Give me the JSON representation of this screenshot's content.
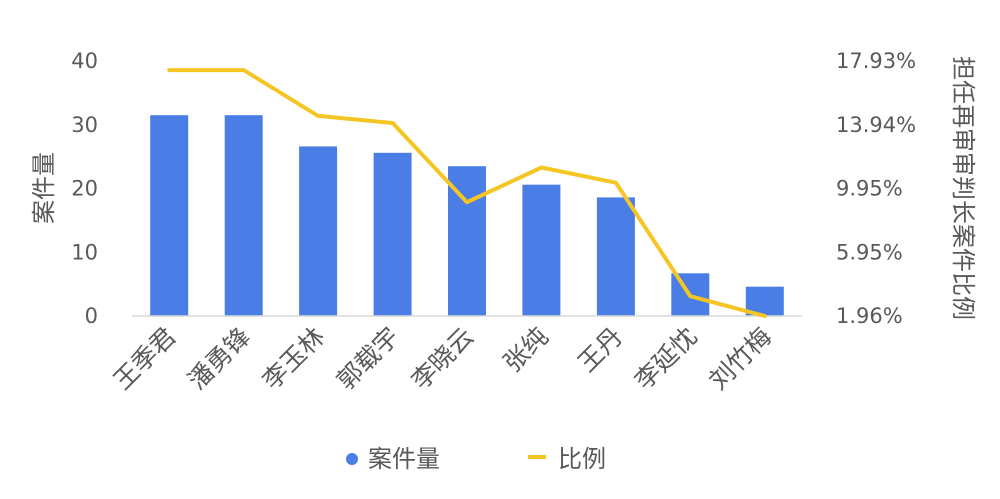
{
  "chart_data": {
    "type": "bar",
    "categories": [
      "王季君",
      "潘勇锋",
      "李玉林",
      "郭载宇",
      "李晓云",
      "张纯",
      "王丹",
      "李延忱",
      "刘竹梅"
    ],
    "series": [
      {
        "name": "案件量",
        "type": "bar",
        "axis": "left",
        "color": "#4a7ee6",
        "values": [
          31.5,
          31.5,
          26.6,
          25.6,
          23.5,
          20.6,
          18.6,
          6.7,
          4.6
        ]
      },
      {
        "name": "比例",
        "type": "line",
        "axis": "right",
        "color": "#f5c623",
        "values": [
          0.1736,
          0.1736,
          0.1449,
          0.1405,
          0.0909,
          0.1126,
          0.1031,
          0.032,
          0.0196
        ]
      }
    ],
    "ylabel": "案件量",
    "y2label": "担任再审审判长案件比例",
    "ylim": [
      0,
      40
    ],
    "y2lim": [
      0.0196,
      0.1793
    ],
    "yticks": [
      "0",
      "10",
      "20",
      "30",
      "40"
    ],
    "y2ticks": [
      "1.96%",
      "5.95%",
      "9.95%",
      "13.94%",
      "17.93%"
    ],
    "legend": [
      "案件量",
      "比例"
    ],
    "legend_position": "bottom",
    "grid": false
  }
}
